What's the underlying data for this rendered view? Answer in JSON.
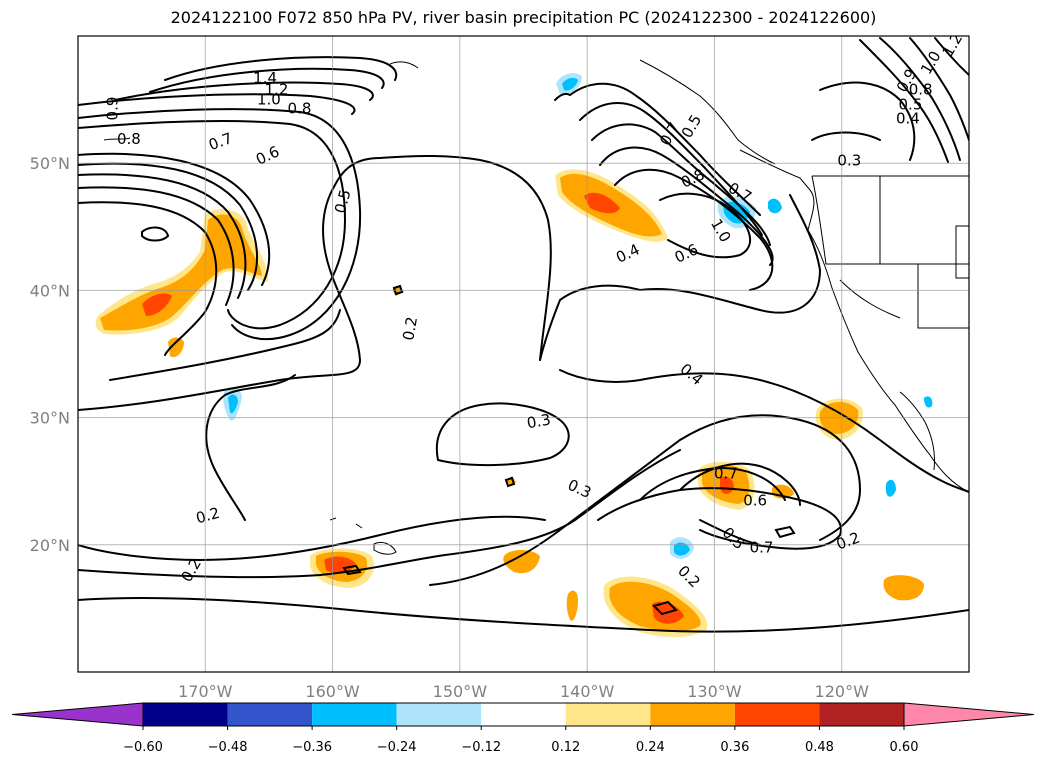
{
  "chart_data": {
    "type": "contour-map",
    "title": "2024122100 F072 850 hPa PV, river basin precipitation PC (2024122300 - 2024122600)",
    "region": "North-east Pacific and western North America",
    "lon_range": [
      -180,
      -110
    ],
    "lat_range": [
      10,
      60
    ],
    "x_ticks": [
      {
        "lon": -170,
        "label": "170°W"
      },
      {
        "lon": -160,
        "label": "160°W"
      },
      {
        "lon": -150,
        "label": "150°W"
      },
      {
        "lon": -140,
        "label": "140°W"
      },
      {
        "lon": -130,
        "label": "130°W"
      },
      {
        "lon": -120,
        "label": "120°W"
      }
    ],
    "y_ticks": [
      {
        "lat": 20,
        "label": "20°N"
      },
      {
        "lat": 30,
        "label": "30°N"
      },
      {
        "lat": 40,
        "label": "40°N"
      },
      {
        "lat": 50,
        "label": "50°N"
      }
    ],
    "grid": true,
    "colorbar": {
      "orientation": "horizontal",
      "extend": "both",
      "ticks": [
        "−0.60",
        "−0.48",
        "−0.36",
        "−0.24",
        "−0.12",
        "0.12",
        "0.24",
        "0.36",
        "0.48",
        "0.60"
      ],
      "colors": [
        "#9933cc",
        "#00008b",
        "#3355cc",
        "#00bfff",
        "#aee4fb",
        "#ffffff",
        "#ffe68a",
        "#ffa500",
        "#ff4500",
        "#b22222",
        "#ff88aa"
      ]
    },
    "contour_labels": [
      {
        "text": "1.4",
        "lon": -165.3,
        "lat": 56.7,
        "rot": 0
      },
      {
        "text": "1.2",
        "lon": -164.4,
        "lat": 55.8,
        "rot": 0
      },
      {
        "text": "1.0",
        "lon": -165.0,
        "lat": 55.0,
        "rot": 0
      },
      {
        "text": "0.8",
        "lon": -162.6,
        "lat": 54.3,
        "rot": 0
      },
      {
        "text": "0.9",
        "lon": -177.3,
        "lat": 54.3,
        "rot": 90
      },
      {
        "text": "0.8",
        "lon": -176.0,
        "lat": 51.9,
        "rot": 0
      },
      {
        "text": "0.7",
        "lon": -168.8,
        "lat": 51.7,
        "rot": 20
      },
      {
        "text": "0.6",
        "lon": -165.1,
        "lat": 50.6,
        "rot": 25
      },
      {
        "text": "0.5",
        "lon": -159.2,
        "lat": 47.0,
        "rot": 75
      },
      {
        "text": "0.2",
        "lon": -153.9,
        "lat": 37.0,
        "rot": 80
      },
      {
        "text": "0.3",
        "lon": -143.8,
        "lat": 29.7,
        "rot": 10
      },
      {
        "text": "0.3",
        "lon": -140.6,
        "lat": 24.4,
        "rot": -25
      },
      {
        "text": "0.4",
        "lon": -131.8,
        "lat": 33.4,
        "rot": -40
      },
      {
        "text": "0.4",
        "lon": -136.8,
        "lat": 42.9,
        "rot": 25
      },
      {
        "text": "0.6",
        "lon": -132.2,
        "lat": 42.9,
        "rot": 25
      },
      {
        "text": "0.8",
        "lon": -131.7,
        "lat": 48.8,
        "rot": 25
      },
      {
        "text": "0.7",
        "lon": -128.0,
        "lat": 47.7,
        "rot": -30
      },
      {
        "text": "1.0",
        "lon": -129.5,
        "lat": 44.7,
        "rot": -60
      },
      {
        "text": "0.5",
        "lon": -131.8,
        "lat": 52.9,
        "rot": 60
      },
      {
        "text": "0.7",
        "lon": -133.5,
        "lat": 52.3,
        "rot": 60
      },
      {
        "text": "0.6",
        "lon": -126.8,
        "lat": 23.5,
        "rot": 0
      },
      {
        "text": "0.7",
        "lon": -129.1,
        "lat": 25.6,
        "rot": 0
      },
      {
        "text": "0.5",
        "lon": -128.5,
        "lat": 20.5,
        "rot": -45
      },
      {
        "text": "0.7",
        "lon": -126.3,
        "lat": 19.8,
        "rot": 0
      },
      {
        "text": "0.2",
        "lon": -132.0,
        "lat": 17.5,
        "rot": -45
      },
      {
        "text": "0.2",
        "lon": -119.5,
        "lat": 20.3,
        "rot": 20
      },
      {
        "text": "0.2",
        "lon": -169.8,
        "lat": 22.3,
        "rot": 15
      },
      {
        "text": "0.2",
        "lon": -171.1,
        "lat": 18.0,
        "rot": 60
      },
      {
        "text": "0.3",
        "lon": -119.4,
        "lat": 50.2,
        "rot": 0
      },
      {
        "text": "0.4",
        "lon": -114.8,
        "lat": 53.5,
        "rot": 0
      },
      {
        "text": "0.5",
        "lon": -114.6,
        "lat": 54.6,
        "rot": 0
      },
      {
        "text": "0.8",
        "lon": -113.8,
        "lat": 55.8,
        "rot": 0
      },
      {
        "text": "0.9",
        "lon": -114.9,
        "lat": 56.5,
        "rot": 60
      },
      {
        "text": "1.0",
        "lon": -113.0,
        "lat": 57.9,
        "rot": 60
      },
      {
        "text": "1.2",
        "lon": -111.3,
        "lat": 59.3,
        "rot": 60
      }
    ]
  }
}
